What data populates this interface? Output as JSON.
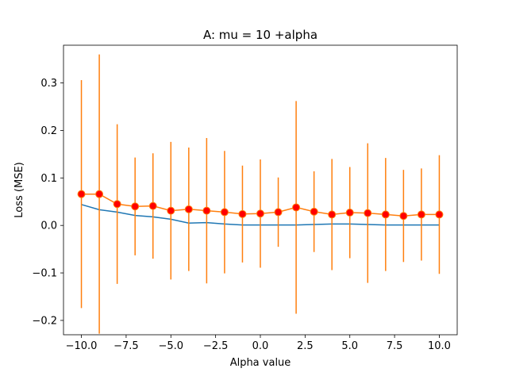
{
  "chart_data": {
    "type": "line",
    "title": "A: mu = 10 +alpha",
    "xlabel": "Alpha value",
    "ylabel": "Loss (MSE)",
    "xlim": [
      -11,
      11
    ],
    "ylim": [
      -0.2302,
      0.3795
    ],
    "x_ticks": [
      -10,
      -7.5,
      -5,
      -2.5,
      0,
      2.5,
      5,
      7.5,
      10
    ],
    "x_tick_labels": [
      "−10.0",
      "−7.5",
      "−5.0",
      "−2.5",
      "0.0",
      "2.5",
      "5.0",
      "7.5",
      "10.0"
    ],
    "y_ticks": [
      -0.2,
      -0.1,
      0.0,
      0.1,
      0.2,
      0.3
    ],
    "y_tick_labels": [
      "−0.2",
      "−0.1",
      "0.0",
      "0.1",
      "0.2",
      "0.3"
    ],
    "grid": false,
    "x": [
      -10,
      -9,
      -8,
      -7,
      -6,
      -5,
      -4,
      -3,
      -2,
      -1,
      0,
      1,
      2,
      3,
      4,
      5,
      6,
      7,
      8,
      9,
      10
    ],
    "series": [
      {
        "color": "#1f77b4",
        "style": "line",
        "values": [
          0.044,
          0.033,
          0.028,
          0.021,
          0.018,
          0.013,
          0.005,
          0.006,
          0.003,
          0.001,
          0.001,
          0.001,
          0.001,
          0.002,
          0.003,
          0.003,
          0.002,
          0.001,
          0.001,
          0.001,
          0.001
        ]
      },
      {
        "color": "#ff7f0e",
        "marker_color": "#ff0000",
        "style": "line-markers-errorbars",
        "values": [
          0.066,
          0.066,
          0.045,
          0.04,
          0.041,
          0.031,
          0.034,
          0.031,
          0.028,
          0.024,
          0.025,
          0.028,
          0.038,
          0.029,
          0.023,
          0.027,
          0.026,
          0.023,
          0.02,
          0.023,
          0.023
        ],
        "errors": [
          0.24,
          0.294,
          0.168,
          0.103,
          0.111,
          0.145,
          0.13,
          0.153,
          0.129,
          0.102,
          0.114,
          0.073,
          0.224,
          0.085,
          0.117,
          0.096,
          0.147,
          0.119,
          0.097,
          0.097,
          0.125
        ]
      }
    ]
  }
}
